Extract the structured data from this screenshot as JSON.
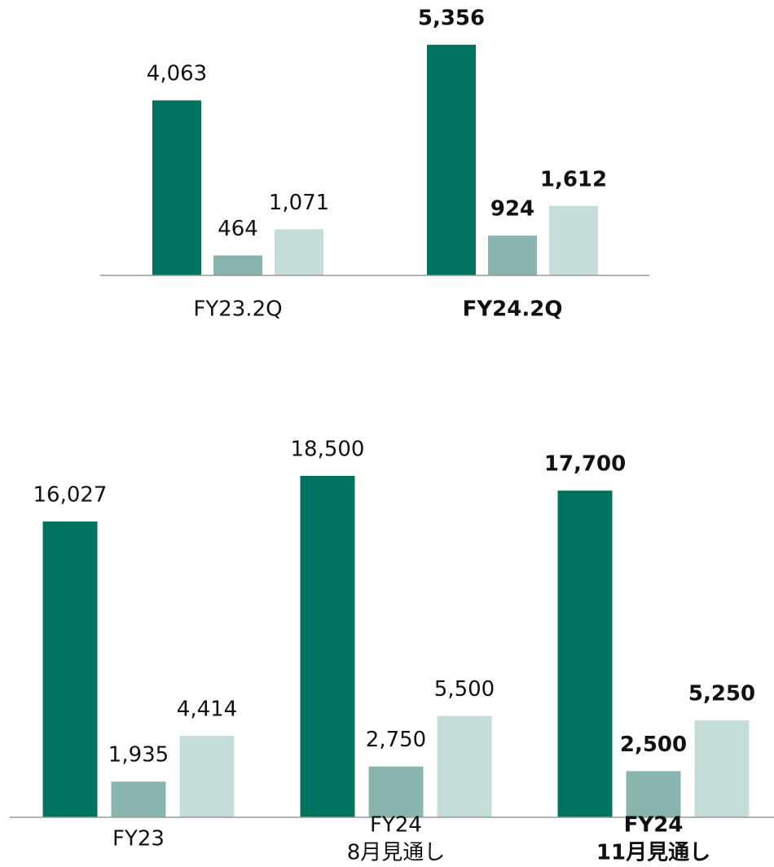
{
  "chart_data": [
    {
      "type": "bar",
      "categories": [
        [
          "FY23.2Q"
        ],
        [
          "FY24.2Q"
        ]
      ],
      "highlight_index": 1,
      "ylim": [
        0,
        5600
      ],
      "series": [
        {
          "color": "#00735f",
          "values": [
            4063,
            5356
          ],
          "value_labels": [
            "4,063",
            "5,356"
          ]
        },
        {
          "color": "#88b5ae",
          "values": [
            464,
            924
          ],
          "value_labels": [
            "464",
            "924"
          ]
        },
        {
          "color": "#c5ddd8",
          "values": [
            1071,
            1612
          ],
          "value_labels": [
            "1,071",
            "1,612"
          ]
        }
      ]
    },
    {
      "type": "bar",
      "categories": [
        [
          "FY23"
        ],
        [
          "FY24",
          "8月見通し"
        ],
        [
          "FY24",
          "11月見通し"
        ]
      ],
      "highlight_index": 2,
      "ylim": [
        0,
        20000
      ],
      "series": [
        {
          "color": "#00735f",
          "values": [
            16027,
            18500,
            17700
          ],
          "value_labels": [
            "16,027",
            "18,500",
            "17,700"
          ]
        },
        {
          "color": "#88b5ae",
          "values": [
            1935,
            2750,
            2500
          ],
          "value_labels": [
            "1,935",
            "2,750",
            "2,500"
          ]
        },
        {
          "color": "#c5ddd8",
          "values": [
            4414,
            5500,
            5250
          ],
          "value_labels": [
            "4,414",
            "5,500",
            "5,250"
          ]
        }
      ]
    }
  ]
}
